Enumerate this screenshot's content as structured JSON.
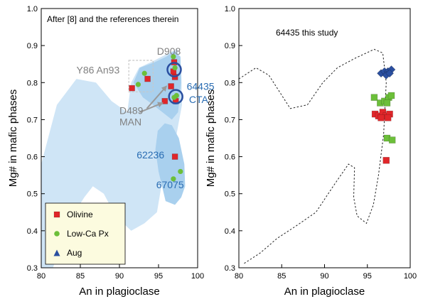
{
  "chart_data": [
    {
      "type": "scatter",
      "panel": "left",
      "xlabel": "An in plagioclase",
      "ylabel": "Mg# in mafic phases",
      "xlim": [
        80,
        100
      ],
      "ylim": [
        0.3,
        1.0
      ],
      "xticks": [
        "80",
        "85",
        "90",
        "95",
        "100"
      ],
      "yticks": [
        "0.3",
        "0.4",
        "0.5",
        "0.6",
        "0.7",
        "0.8",
        "0.9",
        "1.0"
      ],
      "grid": false,
      "annotation_header": "After [8] and the references therein",
      "labels": [
        {
          "text": "D908",
          "x": 94.8,
          "y": 0.875,
          "color": "gray"
        },
        {
          "text": "Y86 An93",
          "x": 84.5,
          "y": 0.825,
          "color": "gray"
        },
        {
          "text": "D489",
          "x": 90.0,
          "y": 0.715,
          "color": "gray"
        },
        {
          "text": "MAN",
          "x": 90.0,
          "y": 0.685,
          "color": "gray"
        },
        {
          "text": "64435",
          "x": 98.6,
          "y": 0.78,
          "color": "blue"
        },
        {
          "text": "CTA",
          "x": 98.9,
          "y": 0.745,
          "color": "blue"
        },
        {
          "text": "62236",
          "x": 92.2,
          "y": 0.595,
          "color": "blue"
        },
        {
          "text": "67075",
          "x": 94.7,
          "y": 0.515,
          "color": "blue"
        }
      ],
      "series": [
        {
          "name": "Olivine",
          "marker": "square",
          "color": "#e0262a",
          "points": [
            [
              91.6,
              0.785
            ],
            [
              93.6,
              0.81
            ],
            [
              95.8,
              0.75
            ],
            [
              96.6,
              0.79
            ],
            [
              96.9,
              0.83
            ],
            [
              97.0,
              0.855
            ],
            [
              97.1,
              0.815
            ],
            [
              97.2,
              0.75
            ],
            [
              97.1,
              0.6
            ]
          ]
        },
        {
          "name": "Low-Ca Px",
          "marker": "circle",
          "color": "#6cbf3a",
          "points": [
            [
              92.4,
              0.795
            ],
            [
              93.2,
              0.825
            ],
            [
              96.9,
              0.87
            ],
            [
              97.1,
              0.84
            ],
            [
              97.3,
              0.765
            ],
            [
              97.0,
              0.76
            ],
            [
              96.9,
              0.54
            ],
            [
              97.8,
              0.56
            ]
          ]
        },
        {
          "name": "Aug",
          "marker": "triangle",
          "color": "#2a4fa0",
          "points": []
        }
      ],
      "legend": {
        "position": "bottom-left",
        "entries": [
          "Olivine",
          "Low-Ca Px",
          "Aug"
        ]
      }
    },
    {
      "type": "scatter",
      "panel": "right",
      "xlabel": "An in plagioclase",
      "ylabel": "Mg# in mafic phases",
      "xlim": [
        80,
        100
      ],
      "ylim": [
        0.3,
        1.0
      ],
      "xticks": [
        "80",
        "85",
        "90",
        "95",
        "100"
      ],
      "yticks": [
        "0.3",
        "0.4",
        "0.5",
        "0.6",
        "0.7",
        "0.8",
        "0.9",
        "1.0"
      ],
      "grid": false,
      "annotation_header": "64435 this study",
      "series": [
        {
          "name": "Aug",
          "marker": "diamond",
          "color": "#2a4fa0",
          "points": [
            [
              96.6,
              0.825
            ],
            [
              97.0,
              0.83
            ],
            [
              97.4,
              0.83
            ],
            [
              97.8,
              0.835
            ],
            [
              97.2,
              0.82
            ],
            [
              97.6,
              0.825
            ]
          ]
        },
        {
          "name": "Low-Ca Px",
          "marker": "square",
          "color": "#6cbf3a",
          "points": [
            [
              95.8,
              0.76
            ],
            [
              96.5,
              0.745
            ],
            [
              97.0,
              0.75
            ],
            [
              97.5,
              0.76
            ],
            [
              97.8,
              0.765
            ],
            [
              97.3,
              0.745
            ],
            [
              97.3,
              0.65
            ],
            [
              97.9,
              0.645
            ]
          ]
        },
        {
          "name": "Olivine",
          "marker": "square",
          "color": "#e0262a",
          "points": [
            [
              95.9,
              0.715
            ],
            [
              96.3,
              0.71
            ],
            [
              96.8,
              0.72
            ],
            [
              97.2,
              0.71
            ],
            [
              97.6,
              0.715
            ],
            [
              97.4,
              0.705
            ],
            [
              96.6,
              0.705
            ],
            [
              97.2,
              0.59
            ]
          ]
        }
      ]
    }
  ]
}
